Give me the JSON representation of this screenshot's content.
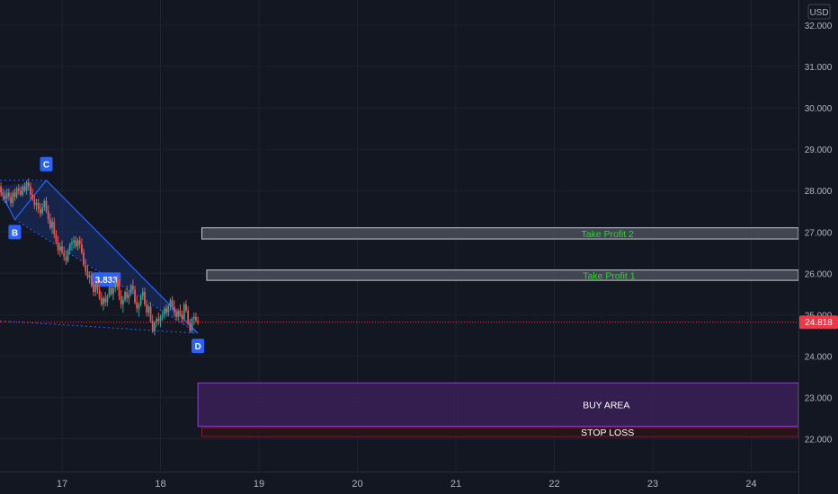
{
  "chart_data": {
    "type": "candlestick",
    "currency": "USD",
    "y_ticks": [
      22.0,
      23.0,
      24.0,
      25.0,
      26.0,
      27.0,
      28.0,
      29.0,
      30.0,
      31.0,
      32.0
    ],
    "ylim": [
      21.2,
      32.55
    ],
    "x_ticks": [
      "17",
      "18",
      "19",
      "20",
      "21",
      "22",
      "23",
      "24"
    ],
    "last_price": "24.818",
    "last_price_value": 24.818,
    "grid": true,
    "pattern": {
      "points": [
        {
          "label": "B",
          "day": 16.52,
          "price": 27.3
        },
        {
          "label": "C",
          "day": 16.84,
          "price": 28.25
        },
        {
          "label": "D",
          "day": 18.38,
          "price": 24.55
        }
      ],
      "start": {
        "day": 16.35,
        "price": 28.1
      },
      "x_to_d_value": "3.833"
    },
    "zones": [
      {
        "name": "take_profit_2",
        "label": "Take Profit 2",
        "from_day": 18.42,
        "top": 27.1,
        "bottom": 26.83,
        "fill": "#4a4e5a",
        "border": "#c6c8ce",
        "text_color": "#22dd22"
      },
      {
        "name": "take_profit_1",
        "label": "Take Profit 1",
        "from_day": 18.47,
        "top": 26.08,
        "bottom": 25.83,
        "fill": "#4a4e5a",
        "border": "#c6c8ce",
        "text_color": "#22dd22"
      },
      {
        "name": "buy_area",
        "label": "BUY AREA",
        "from_day": 18.38,
        "top": 23.35,
        "bottom": 22.3,
        "fill": "#3b1f57",
        "border": "#8a44c8",
        "text_color": "#ffffff"
      },
      {
        "name": "stop_loss",
        "label": "STOP LOSS",
        "from_day": 18.42,
        "top": 22.27,
        "bottom": 22.05,
        "fill": "#2a1418",
        "border": "#7a2030",
        "text_color": "#ffffff"
      }
    ],
    "candles": [
      [
        16.36,
        28.0,
        28.2,
        27.7,
        28.1
      ],
      [
        16.38,
        28.1,
        28.2,
        27.85,
        27.95
      ],
      [
        16.4,
        27.95,
        28.05,
        27.75,
        27.9
      ],
      [
        16.42,
        27.9,
        28.0,
        27.7,
        27.8
      ],
      [
        16.44,
        27.8,
        28.05,
        27.65,
        27.95
      ],
      [
        16.46,
        27.95,
        28.05,
        27.75,
        27.85
      ],
      [
        16.48,
        27.85,
        27.95,
        27.6,
        27.7
      ],
      [
        16.5,
        27.7,
        28.0,
        27.6,
        27.95
      ],
      [
        16.52,
        27.95,
        28.05,
        27.75,
        27.85
      ],
      [
        16.54,
        27.85,
        28.1,
        27.8,
        28.05
      ],
      [
        16.56,
        28.05,
        28.15,
        27.9,
        28.0
      ],
      [
        16.58,
        28.0,
        28.1,
        27.85,
        27.9
      ],
      [
        16.6,
        27.9,
        28.15,
        27.85,
        28.1
      ],
      [
        16.62,
        28.1,
        28.2,
        27.95,
        28.0
      ],
      [
        16.64,
        28.0,
        28.25,
        27.9,
        28.2
      ],
      [
        16.66,
        28.2,
        28.3,
        28.0,
        28.1
      ],
      [
        16.68,
        28.1,
        28.2,
        27.8,
        27.9
      ],
      [
        16.7,
        27.9,
        28.05,
        27.75,
        27.8
      ],
      [
        16.72,
        27.8,
        27.9,
        27.55,
        27.65
      ],
      [
        16.74,
        27.65,
        27.8,
        27.5,
        27.7
      ],
      [
        16.76,
        27.7,
        27.8,
        27.45,
        27.55
      ],
      [
        16.78,
        27.55,
        27.7,
        27.35,
        27.45
      ],
      [
        16.8,
        27.45,
        27.7,
        27.4,
        27.6
      ],
      [
        16.82,
        27.6,
        27.8,
        27.5,
        27.75
      ],
      [
        16.84,
        27.75,
        27.85,
        27.45,
        27.5
      ],
      [
        16.86,
        27.5,
        27.65,
        27.2,
        27.3
      ],
      [
        16.88,
        27.3,
        27.45,
        27.05,
        27.1
      ],
      [
        16.9,
        27.1,
        27.35,
        26.95,
        27.25
      ],
      [
        16.92,
        27.25,
        27.35,
        26.85,
        26.95
      ],
      [
        16.94,
        26.95,
        27.05,
        26.7,
        26.75
      ],
      [
        16.96,
        26.75,
        26.9,
        26.45,
        26.55
      ],
      [
        16.98,
        26.55,
        26.75,
        26.4,
        26.65
      ],
      [
        17.0,
        26.65,
        26.8,
        26.45,
        26.5
      ],
      [
        17.02,
        26.5,
        26.65,
        26.3,
        26.4
      ],
      [
        17.04,
        26.4,
        26.55,
        26.2,
        26.3
      ],
      [
        17.06,
        26.3,
        26.6,
        26.25,
        26.55
      ],
      [
        17.08,
        26.55,
        26.75,
        26.45,
        26.7
      ],
      [
        17.1,
        26.7,
        26.85,
        26.55,
        26.75
      ],
      [
        17.12,
        26.75,
        26.9,
        26.6,
        26.8
      ],
      [
        17.14,
        26.8,
        26.9,
        26.6,
        26.65
      ],
      [
        17.16,
        26.65,
        26.85,
        26.55,
        26.8
      ],
      [
        17.18,
        26.8,
        26.9,
        26.6,
        26.7
      ],
      [
        17.2,
        26.7,
        26.85,
        26.45,
        26.5
      ],
      [
        17.22,
        26.5,
        26.6,
        26.15,
        26.2
      ],
      [
        17.24,
        26.2,
        26.35,
        25.95,
        26.05
      ],
      [
        17.26,
        26.05,
        26.2,
        25.85,
        25.9
      ],
      [
        17.28,
        25.9,
        26.05,
        25.75,
        25.95
      ],
      [
        17.3,
        25.95,
        26.05,
        25.65,
        25.7
      ],
      [
        17.32,
        25.7,
        25.8,
        25.45,
        25.55
      ],
      [
        17.34,
        25.55,
        25.75,
        25.45,
        25.7
      ],
      [
        17.36,
        25.7,
        25.85,
        25.5,
        25.6
      ],
      [
        17.38,
        25.6,
        25.7,
        25.35,
        25.4
      ],
      [
        17.4,
        25.4,
        25.55,
        25.2,
        25.25
      ],
      [
        17.42,
        25.25,
        25.45,
        25.1,
        25.4
      ],
      [
        17.44,
        25.4,
        25.55,
        25.2,
        25.3
      ],
      [
        17.46,
        25.3,
        25.5,
        25.2,
        25.45
      ],
      [
        17.48,
        25.45,
        25.7,
        25.4,
        25.65
      ],
      [
        17.5,
        25.65,
        25.8,
        25.45,
        25.5
      ],
      [
        17.52,
        25.5,
        25.7,
        25.35,
        25.65
      ],
      [
        17.54,
        25.65,
        25.85,
        25.55,
        25.8
      ],
      [
        17.56,
        25.8,
        25.95,
        25.6,
        25.7
      ],
      [
        17.58,
        25.7,
        25.85,
        25.35,
        25.45
      ],
      [
        17.6,
        25.45,
        25.6,
        25.15,
        25.25
      ],
      [
        17.62,
        25.25,
        25.45,
        25.05,
        25.35
      ],
      [
        17.64,
        25.35,
        25.6,
        25.3,
        25.55
      ],
      [
        17.66,
        25.55,
        25.7,
        25.3,
        25.4
      ],
      [
        17.68,
        25.4,
        25.6,
        25.25,
        25.5
      ],
      [
        17.7,
        25.5,
        25.75,
        25.45,
        25.7
      ],
      [
        17.72,
        25.7,
        25.85,
        25.5,
        25.6
      ],
      [
        17.74,
        25.6,
        25.7,
        25.25,
        25.3
      ],
      [
        17.76,
        25.3,
        25.45,
        25.05,
        25.15
      ],
      [
        17.78,
        25.15,
        25.3,
        24.95,
        25.25
      ],
      [
        17.8,
        25.25,
        25.5,
        25.2,
        25.45
      ],
      [
        17.82,
        25.45,
        25.65,
        25.35,
        25.55
      ],
      [
        17.84,
        25.55,
        25.65,
        25.2,
        25.25
      ],
      [
        17.86,
        25.25,
        25.35,
        24.95,
        25.05
      ],
      [
        17.88,
        25.05,
        25.25,
        24.95,
        25.2
      ],
      [
        17.9,
        25.2,
        25.3,
        24.8,
        24.85
      ],
      [
        17.92,
        24.85,
        25.0,
        24.55,
        24.6
      ],
      [
        17.94,
        24.6,
        24.85,
        24.5,
        24.8
      ],
      [
        17.96,
        24.8,
        24.95,
        24.7,
        24.9
      ],
      [
        17.98,
        24.9,
        25.05,
        24.75,
        24.85
      ],
      [
        18.0,
        24.85,
        25.0,
        24.7,
        24.95
      ],
      [
        18.02,
        24.95,
        25.1,
        24.85,
        25.0
      ],
      [
        18.04,
        25.0,
        25.2,
        24.9,
        25.15
      ],
      [
        18.06,
        25.15,
        25.25,
        24.95,
        25.05
      ],
      [
        18.08,
        25.05,
        25.25,
        24.95,
        25.2
      ],
      [
        18.1,
        25.2,
        25.4,
        25.1,
        25.35
      ],
      [
        18.12,
        25.35,
        25.45,
        25.1,
        25.2
      ],
      [
        18.14,
        25.2,
        25.35,
        24.95,
        25.05
      ],
      [
        18.16,
        25.05,
        25.15,
        24.85,
        24.95
      ],
      [
        18.18,
        24.95,
        25.15,
        24.85,
        25.1
      ],
      [
        18.2,
        25.1,
        25.25,
        24.95,
        25.0
      ],
      [
        18.22,
        25.0,
        25.1,
        24.8,
        24.9
      ],
      [
        18.24,
        24.9,
        25.3,
        24.85,
        25.25
      ],
      [
        18.26,
        25.25,
        25.35,
        25.05,
        25.1
      ],
      [
        18.28,
        25.1,
        25.2,
        24.75,
        24.8
      ],
      [
        18.3,
        24.8,
        24.9,
        24.55,
        24.6
      ],
      [
        18.32,
        24.6,
        24.95,
        24.55,
        24.9
      ],
      [
        18.34,
        24.9,
        25.05,
        24.75,
        24.95
      ],
      [
        18.36,
        24.95,
        25.05,
        24.8,
        24.85
      ],
      [
        18.38,
        24.85,
        24.95,
        24.75,
        24.82
      ]
    ]
  }
}
